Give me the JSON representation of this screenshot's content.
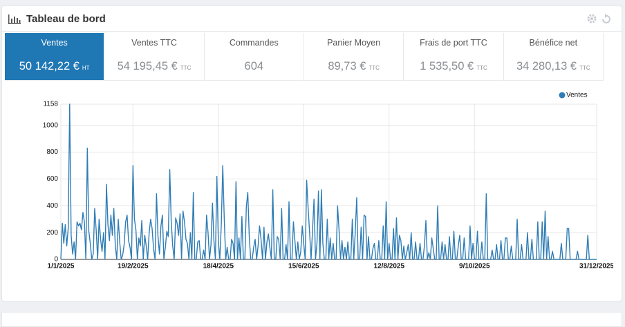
{
  "header": {
    "title": "Tableau de bord"
  },
  "kpis": [
    {
      "label": "Ventes",
      "value": "50 142,22 €",
      "unit": "HT"
    },
    {
      "label": "Ventes TTC",
      "value": "54 195,45 €",
      "unit": "TTC"
    },
    {
      "label": "Commandes",
      "value": "604"
    },
    {
      "label": "Panier Moyen",
      "value": "89,73 €",
      "unit": "TTC"
    },
    {
      "label": "Frais de port TTC",
      "value": "1 535,50 €",
      "unit": "TTC"
    },
    {
      "label": "Bénéfice net",
      "value": "34 280,13 €",
      "unit": "TTC"
    }
  ],
  "chart_data": {
    "type": "line",
    "categories": [
      "1/1/2025",
      null,
      null,
      null,
      null,
      null,
      null,
      null,
      null,
      null,
      null,
      null,
      null,
      null,
      null,
      null,
      null,
      null,
      null,
      null,
      null,
      null,
      null,
      null,
      null,
      null,
      null,
      null,
      null,
      null,
      null,
      null,
      null,
      null,
      null,
      null,
      null,
      null,
      null,
      null,
      null,
      null,
      null,
      null,
      null,
      null,
      null,
      null,
      null,
      "19/2/2025",
      null,
      null,
      null,
      null,
      null,
      null,
      null,
      null,
      null,
      null,
      null,
      null,
      null,
      null,
      null,
      null,
      null,
      null,
      null,
      null,
      null,
      null,
      null,
      null,
      null,
      null,
      null,
      null,
      null,
      null,
      null,
      null,
      null,
      null,
      null,
      null,
      null,
      null,
      null,
      null,
      null,
      null,
      null,
      null,
      null,
      null,
      null,
      null,
      null,
      null,
      null,
      null,
      null,
      null,
      null,
      null,
      null,
      "18/4/2025",
      null,
      null,
      null,
      null,
      null,
      null,
      null,
      null,
      null,
      null,
      null,
      null,
      null,
      null,
      null,
      null,
      null,
      null,
      null,
      null,
      null,
      null,
      null,
      null,
      null,
      null,
      null,
      null,
      null,
      null,
      null,
      null,
      null,
      null,
      null,
      null,
      null,
      null,
      null,
      null,
      null,
      null,
      null,
      null,
      null,
      null,
      null,
      null,
      null,
      null,
      null,
      null,
      null,
      null,
      null,
      null,
      null,
      "15/6/2025",
      null,
      null,
      null,
      null,
      null,
      null,
      null,
      null,
      null,
      null,
      null,
      null,
      null,
      null,
      null,
      null,
      null,
      null,
      null,
      null,
      null,
      null,
      null,
      null,
      null,
      null,
      null,
      null,
      null,
      null,
      null,
      null,
      null,
      null,
      null,
      null,
      null,
      null,
      null,
      null,
      null,
      null,
      null,
      null,
      null,
      null,
      null,
      null,
      null,
      null,
      null,
      null,
      null,
      null,
      null,
      null,
      null,
      "12/8/2025",
      null,
      null,
      null,
      null,
      null,
      null,
      null,
      null,
      null,
      null,
      null,
      null,
      null,
      null,
      null,
      null,
      null,
      null,
      null,
      null,
      null,
      null,
      null,
      null,
      null,
      null,
      null,
      null,
      null,
      null,
      null,
      null,
      null,
      null,
      null,
      null,
      null,
      null,
      null,
      null,
      null,
      null,
      null,
      null,
      null,
      null,
      null,
      null,
      null,
      null,
      null,
      null,
      null,
      null,
      null,
      null,
      null,
      "9/10/2025",
      null,
      null,
      null,
      null,
      null,
      null,
      null,
      null,
      null,
      null,
      null,
      null,
      null,
      null,
      null,
      null,
      null,
      null,
      null,
      null,
      null,
      null,
      null,
      null,
      null,
      null,
      null,
      null,
      null,
      null,
      null,
      null,
      null,
      null,
      null,
      null,
      null,
      null,
      null,
      null,
      null,
      null,
      null,
      null,
      null,
      null,
      null,
      null,
      null,
      null,
      null,
      null,
      null,
      null,
      null,
      null,
      null,
      null,
      null,
      null,
      null,
      null,
      null,
      null,
      null,
      null,
      null,
      null,
      null,
      null,
      null,
      null,
      null,
      null,
      null,
      null,
      null,
      null,
      null,
      null,
      null,
      null,
      "31/12/2025"
    ],
    "series": [
      {
        "name": "Ventes",
        "color": "#2f7db5",
        "values": [
          0,
          270,
          120,
          260,
          100,
          230,
          1158,
          180,
          40,
          130,
          0,
          280,
          250,
          270,
          220,
          350,
          280,
          0,
          830,
          210,
          120,
          0,
          40,
          380,
          220,
          0,
          300,
          150,
          60,
          200,
          0,
          560,
          260,
          140,
          330,
          180,
          380,
          100,
          0,
          300,
          130,
          0,
          30,
          110,
          280,
          330,
          140,
          90,
          0,
          700,
          300,
          220,
          0,
          160,
          100,
          290,
          0,
          180,
          100,
          0,
          200,
          300,
          230,
          80,
          0,
          490,
          170,
          40,
          250,
          330,
          0,
          90,
          210,
          170,
          670,
          280,
          100,
          0,
          310,
          270,
          180,
          340,
          0,
          360,
          280,
          150,
          120,
          0,
          200,
          0,
          500,
          0,
          0,
          130,
          140,
          0,
          0,
          70,
          0,
          330,
          200,
          0,
          110,
          420,
          140,
          0,
          620,
          140,
          0,
          260,
          700,
          310,
          0,
          90,
          0,
          0,
          150,
          120,
          0,
          580,
          0,
          160,
          0,
          320,
          0,
          0,
          390,
          500,
          170,
          0,
          0,
          90,
          150,
          0,
          100,
          250,
          150,
          0,
          240,
          0,
          130,
          190,
          90,
          0,
          520,
          0,
          0,
          170,
          150,
          0,
          380,
          0,
          0,
          110,
          0,
          430,
          0,
          0,
          280,
          140,
          0,
          130,
          0,
          60,
          250,
          120,
          0,
          590,
          380,
          200,
          0,
          220,
          450,
          0,
          120,
          510,
          0,
          520,
          120,
          0,
          0,
          300,
          0,
          160,
          0,
          120,
          0,
          0,
          400,
          220,
          0,
          140,
          0,
          90,
          0,
          130,
          0,
          0,
          300,
          0,
          200,
          460,
          0,
          0,
          240,
          0,
          330,
          320,
          0,
          170,
          0,
          0,
          80,
          120,
          0,
          0,
          140,
          0,
          0,
          250,
          0,
          430,
          0,
          120,
          0,
          0,
          230,
          0,
          310,
          0,
          180,
          140,
          0,
          100,
          0,
          50,
          110,
          0,
          200,
          0,
          0,
          130,
          0,
          0,
          120,
          0,
          0,
          100,
          290,
          0,
          50,
          0,
          160,
          80,
          0,
          0,
          400,
          0,
          0,
          130,
          0,
          110,
          0,
          0,
          170,
          0,
          0,
          210,
          0,
          0,
          100,
          180,
          0,
          0,
          160,
          0,
          0,
          0,
          250,
          0,
          120,
          0,
          0,
          210,
          0,
          0,
          130,
          0,
          0,
          490,
          0,
          0,
          0,
          70,
          0,
          0,
          110,
          0,
          0,
          140,
          0,
          0,
          160,
          160,
          0,
          0,
          100,
          0,
          0,
          0,
          300,
          0,
          0,
          110,
          0,
          0,
          0,
          200,
          0,
          0,
          150,
          0,
          0,
          0,
          280,
          0,
          0,
          280,
          0,
          360,
          0,
          170,
          0,
          0,
          60,
          0,
          0,
          0,
          0,
          0,
          120,
          0,
          0,
          0,
          230,
          230,
          0,
          0,
          0,
          0,
          0,
          60,
          0,
          0,
          0,
          0,
          0,
          0,
          180,
          0,
          0,
          0,
          0,
          0,
          0
        ]
      }
    ],
    "ylim": [
      0,
      1158
    ],
    "yticks": [
      0,
      200,
      400,
      600,
      800,
      1000,
      1158
    ],
    "grid": true,
    "legend": "top-right"
  }
}
